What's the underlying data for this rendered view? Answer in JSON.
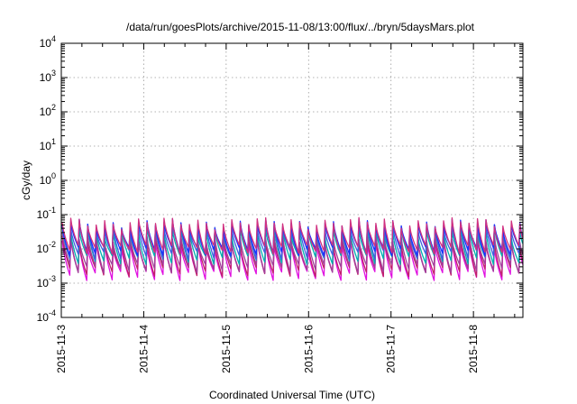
{
  "chart_data": {
    "type": "line",
    "title": "/data/run/goesPlots/archive/2015-11-08/13:00/flux/../bryn/5daysMars.plot",
    "xlabel": "Coordinated Universal Time (UTC)",
    "ylabel": "cGy/day",
    "y_scale": "log",
    "ylim_exponents": [
      -4,
      4
    ],
    "y_tick_base": "10",
    "y_tick_exponents": [
      "-4",
      "-3",
      "-2",
      "-1",
      "0",
      "1",
      "2",
      "3",
      "4"
    ],
    "xlim_days": [
      0,
      5.6
    ],
    "x_tick_labels": [
      "2015-11-3",
      "2015-11-4",
      "2015-11-5",
      "2015-11-6",
      "2015-11-7",
      "2015-11-8"
    ],
    "grid": true,
    "legend": "none",
    "cycle_days": 0.1028,
    "series": [
      {
        "color": "#e010e0",
        "peak": 0.015,
        "trough": 0.0017
      },
      {
        "color": "#c0206a",
        "peak": 0.018,
        "trough": 0.0022
      },
      {
        "color": "#a0409a",
        "peak": 0.022,
        "trough": 0.0028
      },
      {
        "color": "#00b0b0",
        "peak": 0.035,
        "trough": 0.005
      },
      {
        "color": "#4060e0",
        "peak": 0.045,
        "trough": 0.007
      },
      {
        "color": "#1830ff",
        "peak": 0.055,
        "trough": 0.009
      },
      {
        "color": "#d03080",
        "peak": 0.06,
        "trough": 0.01
      }
    ]
  }
}
